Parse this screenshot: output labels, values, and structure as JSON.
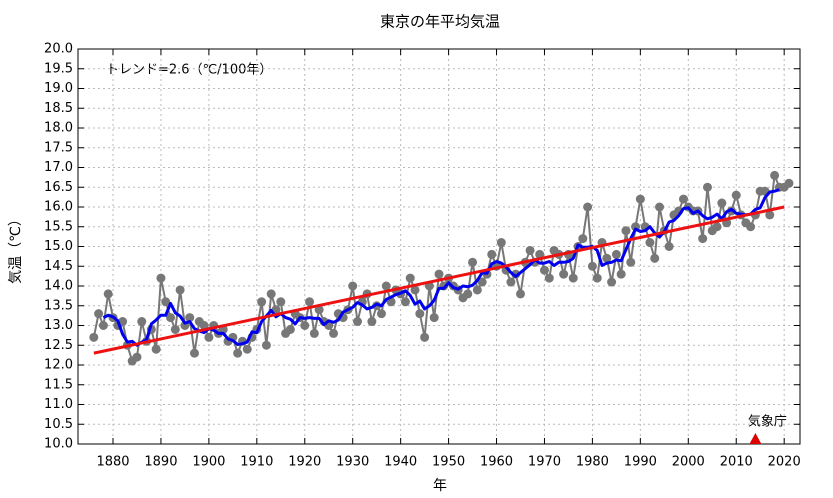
{
  "chart_data": {
    "type": "line",
    "title": "東京の年平均気温",
    "x_label": "年",
    "y_label": "気温（℃）",
    "annotations": [
      {
        "text": "トレンド=2.6（℃/100年）"
      },
      {
        "text": "気象庁",
        "x": 2014,
        "color": "#dd0000"
      }
    ],
    "xlim": [
      1872.7,
      2023.3
    ],
    "ylim": [
      10,
      20
    ],
    "xticks": [
      1880,
      1890,
      1900,
      1910,
      1920,
      1930,
      1940,
      1950,
      1960,
      1970,
      1980,
      1990,
      2000,
      2010,
      2020
    ],
    "yticks": [
      {
        "value": 10,
        "label": "10.0"
      },
      10.5,
      {
        "value": 11,
        "label": "11.0"
      },
      11.5,
      {
        "value": 12,
        "label": "12.0"
      },
      12.5,
      {
        "value": 13,
        "label": "13.0"
      },
      13.5,
      {
        "value": 14,
        "label": "14.0"
      },
      14.5,
      {
        "value": 15,
        "label": "15.0"
      },
      15.5,
      {
        "value": 16,
        "label": "16.0"
      },
      16.5,
      {
        "value": 17,
        "label": "17.0"
      },
      17.5,
      {
        "value": 18,
        "label": "18.0"
      },
      18.5,
      {
        "value": 19,
        "label": "19.0"
      },
      19.5,
      {
        "value": 20,
        "label": "20.0"
      }
    ],
    "grid": true,
    "series": [
      {
        "color": "#777777",
        "markers": true,
        "x": [
          1876,
          1877,
          1878,
          1879,
          1880,
          1881,
          1882,
          1883,
          1884,
          1885,
          1886,
          1887,
          1888,
          1889,
          1890,
          1891,
          1892,
          1893,
          1894,
          1895,
          1896,
          1897,
          1898,
          1899,
          1900,
          1901,
          1902,
          1903,
          1904,
          1905,
          1906,
          1907,
          1908,
          1909,
          1910,
          1911,
          1912,
          1913,
          1914,
          1915,
          1916,
          1917,
          1918,
          1919,
          1920,
          1921,
          1922,
          1923,
          1924,
          1925,
          1926,
          1927,
          1928,
          1929,
          1930,
          1931,
          1932,
          1933,
          1934,
          1935,
          1936,
          1937,
          1938,
          1939,
          1940,
          1941,
          1942,
          1943,
          1944,
          1945,
          1946,
          1947,
          1948,
          1949,
          1950,
          1951,
          1952,
          1953,
          1954,
          1955,
          1956,
          1957,
          1958,
          1959,
          1960,
          1961,
          1962,
          1963,
          1964,
          1965,
          1966,
          1967,
          1968,
          1969,
          1970,
          1971,
          1972,
          1973,
          1974,
          1975,
          1976,
          1977,
          1978,
          1979,
          1980,
          1981,
          1982,
          1983,
          1984,
          1985,
          1986,
          1987,
          1988,
          1989,
          1990,
          1991,
          1992,
          1993,
          1994,
          1995,
          1996,
          1997,
          1998,
          1999,
          2000,
          2001,
          2002,
          2003,
          2004,
          2005,
          2006,
          2007,
          2008,
          2009,
          2010,
          2011,
          2012,
          2013,
          2014,
          2015,
          2016,
          2017,
          2018,
          2019,
          2020,
          2021
        ],
        "values": [
          12.7,
          13.3,
          13.0,
          13.8,
          13.2,
          13.0,
          13.1,
          12.5,
          12.1,
          12.2,
          13.1,
          12.6,
          12.9,
          12.4,
          14.2,
          13.6,
          13.2,
          12.9,
          13.9,
          13.0,
          13.2,
          12.3,
          13.1,
          13.0,
          12.7,
          13.0,
          12.8,
          12.9,
          12.6,
          12.7,
          12.3,
          12.6,
          12.4,
          12.7,
          12.9,
          13.6,
          12.5,
          13.8,
          13.4,
          13.6,
          12.8,
          12.9,
          13.3,
          13.2,
          13.0,
          13.6,
          12.8,
          13.4,
          13.1,
          13.0,
          12.8,
          13.3,
          13.2,
          13.4,
          14.0,
          13.1,
          13.6,
          13.8,
          13.1,
          13.5,
          13.3,
          14.0,
          13.6,
          13.9,
          13.8,
          13.6,
          14.2,
          13.9,
          13.3,
          12.7,
          14.0,
          13.2,
          14.3,
          14.0,
          14.2,
          14.0,
          13.9,
          13.7,
          13.8,
          14.6,
          13.9,
          14.1,
          14.3,
          14.8,
          14.5,
          15.1,
          14.4,
          14.1,
          14.3,
          13.8,
          14.6,
          14.9,
          14.6,
          14.8,
          14.4,
          14.2,
          14.9,
          14.8,
          14.3,
          14.8,
          14.2,
          15.0,
          15.2,
          16.0,
          14.5,
          14.2,
          15.1,
          14.7,
          14.1,
          14.8,
          14.3,
          15.4,
          14.6,
          15.5,
          16.2,
          15.5,
          15.1,
          14.7,
          16.0,
          15.4,
          15.0,
          15.8,
          15.9,
          16.2,
          16.0,
          15.9,
          15.9,
          15.2,
          16.5,
          15.4,
          15.5,
          16.1,
          15.6,
          15.9,
          16.3,
          15.8,
          15.6,
          15.5,
          15.8,
          16.4,
          16.4,
          15.8,
          16.8,
          16.5,
          16.5,
          16.6
        ]
      },
      {
        "color": "#0000ee",
        "markers": false,
        "x": [
          1878,
          1879,
          1880,
          1881,
          1882,
          1883,
          1884,
          1885,
          1886,
          1887,
          1888,
          1889,
          1890,
          1891,
          1892,
          1893,
          1894,
          1895,
          1896,
          1897,
          1898,
          1899,
          1900,
          1901,
          1902,
          1903,
          1904,
          1905,
          1906,
          1907,
          1908,
          1909,
          1910,
          1911,
          1912,
          1913,
          1914,
          1915,
          1916,
          1917,
          1918,
          1919,
          1920,
          1921,
          1922,
          1923,
          1924,
          1925,
          1926,
          1927,
          1928,
          1929,
          1930,
          1931,
          1932,
          1933,
          1934,
          1935,
          1936,
          1937,
          1938,
          1939,
          1940,
          1941,
          1942,
          1943,
          1944,
          1945,
          1946,
          1947,
          1948,
          1949,
          1950,
          1951,
          1952,
          1953,
          1954,
          1955,
          1956,
          1957,
          1958,
          1959,
          1960,
          1961,
          1962,
          1963,
          1964,
          1965,
          1966,
          1967,
          1968,
          1969,
          1970,
          1971,
          1972,
          1973,
          1974,
          1975,
          1976,
          1977,
          1978,
          1979,
          1980,
          1981,
          1982,
          1983,
          1984,
          1985,
          1986,
          1987,
          1988,
          1989,
          1990,
          1991,
          1992,
          1993,
          1994,
          1995,
          1996,
          1997,
          1998,
          1999,
          2000,
          2001,
          2002,
          2003,
          2004,
          2005,
          2006,
          2007,
          2008,
          2009,
          2010,
          2011,
          2012,
          2013,
          2014,
          2015,
          2016,
          2017,
          2018,
          2019
        ],
        "values": [
          13.2,
          13.26,
          13.22,
          13.12,
          12.78,
          12.58,
          12.6,
          12.5,
          12.58,
          12.64,
          13.04,
          13.14,
          13.26,
          13.26,
          13.56,
          13.32,
          13.24,
          13.06,
          13.1,
          12.92,
          12.86,
          12.82,
          12.92,
          12.88,
          12.8,
          12.8,
          12.66,
          12.62,
          12.52,
          12.54,
          12.58,
          12.84,
          12.82,
          13.1,
          13.24,
          13.38,
          13.22,
          13.3,
          13.2,
          13.16,
          13.04,
          13.2,
          13.18,
          13.2,
          13.18,
          13.18,
          13.02,
          13.12,
          13.08,
          13.14,
          13.34,
          13.4,
          13.46,
          13.58,
          13.52,
          13.42,
          13.46,
          13.54,
          13.5,
          13.66,
          13.72,
          13.78,
          13.82,
          13.88,
          13.76,
          13.54,
          13.62,
          13.42,
          13.5,
          13.64,
          13.94,
          13.94,
          14.08,
          13.96,
          13.92,
          14.0,
          13.98,
          14.02,
          14.14,
          14.34,
          14.32,
          14.56,
          14.62,
          14.58,
          14.48,
          14.34,
          14.24,
          14.34,
          14.44,
          14.54,
          14.66,
          14.58,
          14.58,
          14.62,
          14.52,
          14.6,
          14.6,
          14.62,
          14.7,
          15.04,
          14.98,
          14.98,
          15.0,
          14.9,
          14.52,
          14.58,
          14.6,
          14.66,
          14.64,
          14.92,
          15.2,
          15.44,
          15.38,
          15.4,
          15.5,
          15.34,
          15.24,
          15.38,
          15.62,
          15.66,
          15.78,
          15.96,
          15.98,
          15.84,
          15.9,
          15.78,
          15.7,
          15.74,
          15.82,
          15.7,
          15.88,
          15.94,
          15.84,
          15.82,
          15.8,
          15.82,
          15.94,
          15.98,
          16.24,
          16.38,
          16.4,
          16.44
        ]
      },
      {
        "color": "#ee1111",
        "markers": false,
        "x": [
          1876,
          2020
        ],
        "values": [
          12.3,
          16.0
        ]
      }
    ]
  }
}
